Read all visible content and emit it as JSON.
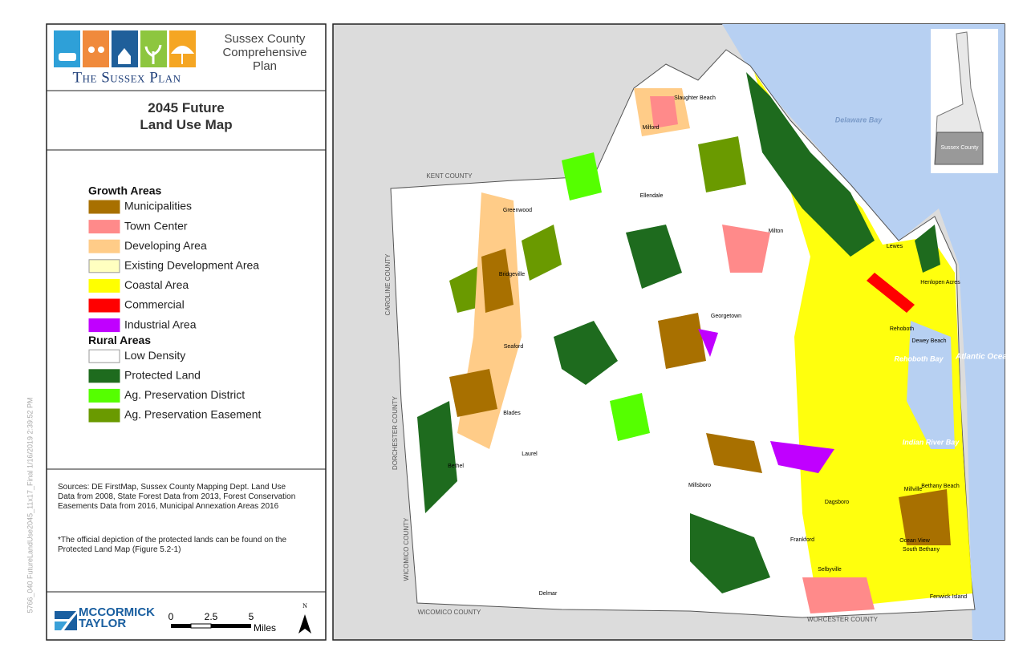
{
  "header": {
    "logo_text": "The Sussex Plan",
    "subtitle": "Sussex County Comprehensive Plan",
    "title": "2045 Future Land Use Map"
  },
  "legend": {
    "groups": [
      {
        "heading": "Growth Areas",
        "items": [
          {
            "label": "Municipalities",
            "color": "#a87000"
          },
          {
            "label": "Town Center",
            "color": "#ff8a8a"
          },
          {
            "label": "Developing Area",
            "color": "#ffcc88"
          },
          {
            "label": "Existing Development Area",
            "color": "#ffffc0"
          },
          {
            "label": "Coastal Area",
            "color": "#ffff00"
          },
          {
            "label": "Commercial",
            "color": "#ff0000"
          },
          {
            "label": "Industrial Area",
            "color": "#c000ff"
          }
        ]
      },
      {
        "heading": "Rural Areas",
        "items": [
          {
            "label": "Low Density",
            "color": "#ffffff"
          },
          {
            "label": "Protected Land",
            "color": "#1e6b1e"
          },
          {
            "label": "Ag. Preservation District",
            "color": "#55ff00"
          },
          {
            "label": "Ag. Preservation Easement",
            "color": "#6a9a00"
          }
        ]
      }
    ]
  },
  "sources": "Sources: DE FirstMap, Sussex County Mapping Dept. Land Use Data from 2008, State Forest Data from 2013, Forest Conservation Easements Data from 2016, Municipal Annexation Areas 2016",
  "note": "*The official depiction of the protected lands can be found on the Protected Land Map (Figure 5.2-1)",
  "footer": {
    "company": "McCormick Taylor",
    "scale_ticks": [
      "0",
      "2.5",
      "5"
    ],
    "scale_unit": "Miles",
    "north": "N"
  },
  "file_stamp": "5766_040   FutureLandUse2045_11x17_Final   1/16/2019 2:39:52 PM",
  "map": {
    "labels": [
      "Slaughter Beach",
      "Milford",
      "Delaware Bay",
      "KENT COUNTY",
      "Ellendale",
      "Greenwood",
      "Milton",
      "Lewes",
      "CAROLINE COUNTY",
      "Bridgeville",
      "Henlopen Acres",
      "Georgetown",
      "Rehoboth",
      "Dewey Beach",
      "Rehoboth Bay",
      "Atlantic Ocean",
      "Seaford",
      "Blades",
      "DORCHESTER COUNTY",
      "Indian River Bay",
      "Laurel",
      "Bethel",
      "Millsboro",
      "Bethany Beach",
      "Millville",
      "Dagsboro",
      "WICOMICO COUNTY",
      "Ocean View",
      "South Bethany",
      "Frankford",
      "Selbyville",
      "Fenwick Island",
      "Delmar",
      "WICOMICO COUNTY",
      "WORCESTER COUNTY"
    ],
    "inset_label": "Sussex County"
  }
}
